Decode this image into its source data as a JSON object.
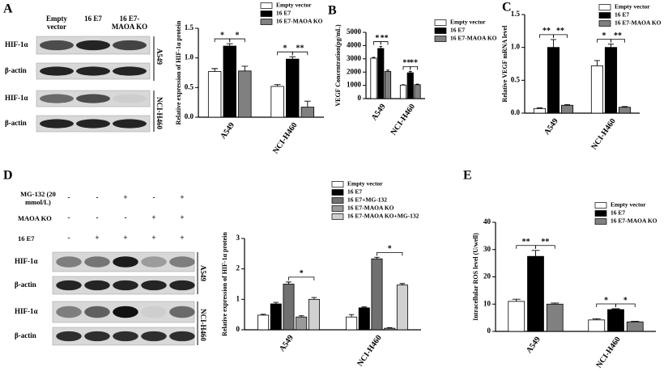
{
  "panel_labels": [
    "A",
    "B",
    "C",
    "D",
    "E"
  ],
  "blot_a": {
    "columns": [
      "Empty vector",
      "16 E7",
      "16 E7-MAOA KO"
    ],
    "rows": [
      "HIF-1α",
      "β-actin",
      "HIF-1α",
      "β-actin"
    ],
    "cell_lines": [
      "A549",
      "NCI-H460"
    ]
  },
  "blot_d": {
    "conditions": [
      {
        "label": "MG-132 (20 mmol/L)",
        "signs": [
          "-",
          "-",
          "+",
          "-",
          "+"
        ]
      },
      {
        "label": "MAOA KO",
        "signs": [
          "-",
          "-",
          "-",
          "+",
          "+"
        ]
      },
      {
        "label": "16 E7",
        "signs": [
          "-",
          "+",
          "+",
          "+",
          "+"
        ]
      }
    ],
    "rows": [
      "HIF-1α",
      "β-actin",
      "HIF-1α",
      "β-actin"
    ],
    "cell_lines": [
      "A549",
      "NCI-H460"
    ]
  },
  "chart_data": [
    {
      "type": "bar",
      "y_label": "Relative expression of HIF-1α protein",
      "categories": [
        "A549",
        "NCI-H460"
      ],
      "series": [
        {
          "name": "Empty vector",
          "color": "#ffffff",
          "values": [
            0.77,
            0.52
          ],
          "errors": [
            0.05,
            0.03
          ]
        },
        {
          "name": "16 E7",
          "color": "#000000",
          "values": [
            1.2,
            0.98
          ],
          "errors": [
            0.04,
            0.04
          ]
        },
        {
          "name": "16 E7-MAOA KO",
          "color": "#808080",
          "values": [
            0.78,
            0.17
          ],
          "errors": [
            0.08,
            0.1
          ]
        }
      ],
      "significance": [
        [
          "*",
          "*"
        ],
        [
          "*",
          "**"
        ]
      ],
      "ylim": [
        0,
        1.5
      ],
      "yticks": [
        {
          "value": 0,
          "label": "0.0"
        },
        0.5,
        {
          "value": 1,
          "label": "1.0"
        },
        1.5
      ]
    },
    {
      "type": "bar",
      "y_label": "VEGF Concentration(pg/mL)",
      "categories": [
        "A549",
        "NCI-H460"
      ],
      "series": [
        {
          "name": "Empty vector",
          "color": "#ffffff",
          "values": [
            3050,
            1020
          ],
          "errors": [
            60,
            30
          ]
        },
        {
          "name": "16 E7",
          "color": "#000000",
          "values": [
            3780,
            1950
          ],
          "errors": [
            150,
            100
          ]
        },
        {
          "name": "16 E7-MAOA KO",
          "color": "#808080",
          "values": [
            2050,
            1050
          ],
          "errors": [
            100,
            40
          ]
        }
      ],
      "significance": [
        [
          "*",
          "**"
        ],
        [
          "**",
          "**"
        ]
      ],
      "ylim": [
        0,
        5000
      ],
      "yticks": [
        0,
        1000,
        2000,
        3000,
        4000,
        5000
      ]
    },
    {
      "type": "bar",
      "y_label": "Relative VEGF mRNA level",
      "categories": [
        "A549",
        "NCI-H460"
      ],
      "series": [
        {
          "name": "Empty vector",
          "color": "#ffffff",
          "values": [
            0.07,
            0.72
          ],
          "errors": [
            0.01,
            0.08
          ]
        },
        {
          "name": "16 E7",
          "color": "#000000",
          "values": [
            1.0,
            1.0
          ],
          "errors": [
            0.12,
            0.05
          ]
        },
        {
          "name": "16 E7-MAOA KO",
          "color": "#808080",
          "values": [
            0.12,
            0.09
          ],
          "errors": [
            0.01,
            0.01
          ]
        }
      ],
      "significance": [
        [
          "**",
          "**"
        ],
        [
          "*",
          "**"
        ]
      ],
      "ylim": [
        0,
        1.5
      ],
      "yticks": [
        {
          "value": 0,
          "label": "0.0"
        },
        0.5,
        {
          "value": 1,
          "label": "1.0"
        },
        1.5
      ]
    },
    {
      "type": "bar",
      "y_label": "Relative expression of HIF-1α protein",
      "categories": [
        "A549",
        "NCI-H460"
      ],
      "series": [
        {
          "name": "Empty vector",
          "color": "#ffffff",
          "values": [
            0.48,
            0.42
          ],
          "errors": [
            0.03,
            0.08
          ]
        },
        {
          "name": "16 E7",
          "color": "#000000",
          "values": [
            0.85,
            0.72
          ],
          "errors": [
            0.05,
            0.03
          ]
        },
        {
          "name": "16 E7+MG-132",
          "color": "#707070",
          "values": [
            1.5,
            2.33
          ],
          "errors": [
            0.07,
            0.05
          ]
        },
        {
          "name": "16 E7-MAOA KO",
          "color": "#9a9a9a",
          "values": [
            0.42,
            0.05
          ],
          "errors": [
            0.04,
            0.02
          ]
        },
        {
          "name": "16 E7-MAOA KO+MG-132",
          "color": "#d0d0d0",
          "values": [
            1.0,
            1.47
          ],
          "errors": [
            0.06,
            0.05
          ]
        }
      ],
      "significance": [
        [
          "*"
        ],
        [
          "*"
        ]
      ],
      "ylim": [
        0,
        3
      ],
      "yticks": [
        0,
        1,
        2,
        3
      ]
    },
    {
      "type": "bar",
      "y_label": "Intracellular ROS level (U/well)",
      "categories": [
        "A549",
        "NCI-H460"
      ],
      "series": [
        {
          "name": "Empty vector",
          "color": "#ffffff",
          "values": [
            11,
            4.2
          ],
          "errors": [
            0.8,
            0.4
          ]
        },
        {
          "name": "16 E7",
          "color": "#000000",
          "values": [
            27.5,
            8
          ],
          "errors": [
            2.2,
            0.3
          ]
        },
        {
          "name": "16 E7-MAOA KO",
          "color": "#808080",
          "values": [
            10,
            3.5
          ],
          "errors": [
            0.4,
            0.2
          ]
        }
      ],
      "significance": [
        [
          "**",
          "**"
        ],
        [
          "*",
          "*"
        ]
      ],
      "ylim": [
        0,
        40
      ],
      "yticks": [
        0,
        10,
        20,
        30,
        40
      ]
    }
  ]
}
